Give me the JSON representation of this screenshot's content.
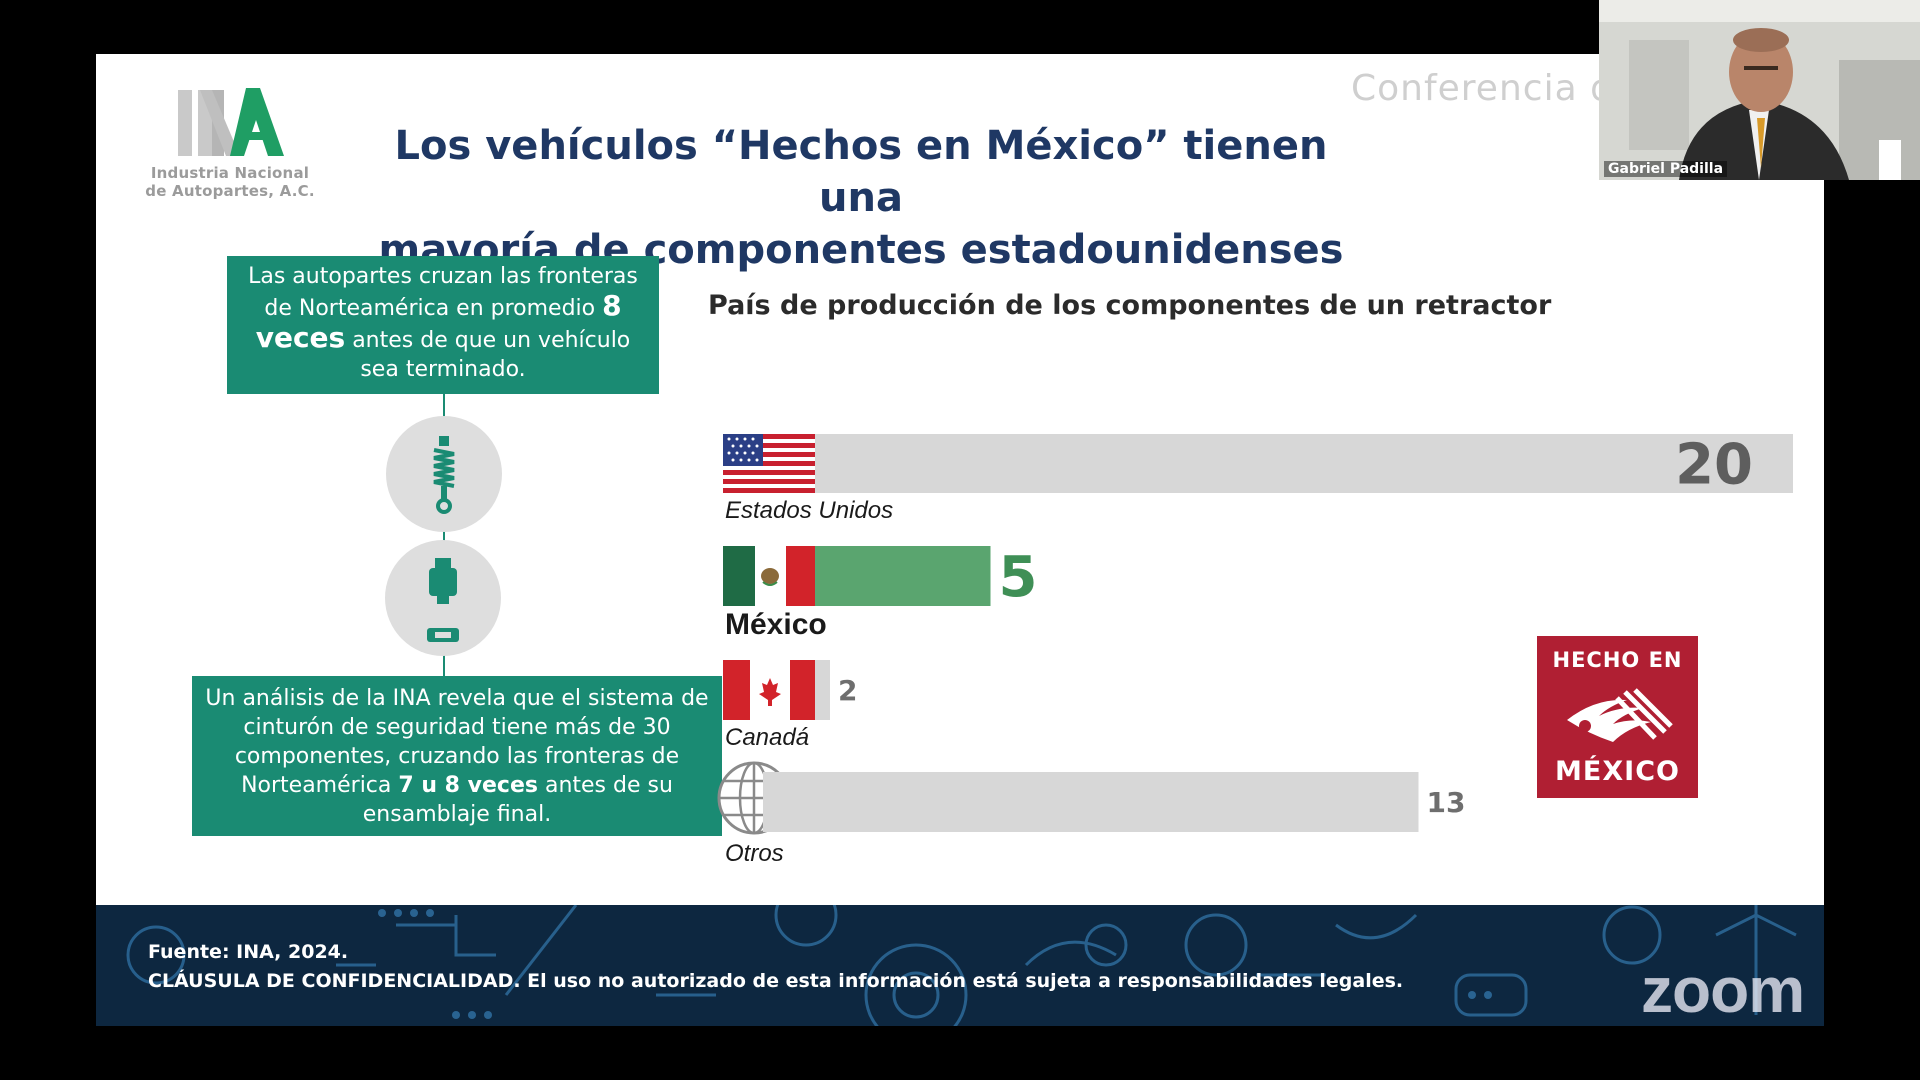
{
  "meeting": {
    "participant_name": "Gabriel Padilla",
    "watermark_text": "Conferencia d",
    "app_watermark": "zoom"
  },
  "slide": {
    "logo": {
      "letters": "INA",
      "line1": "Industria Nacional",
      "line2": "de Autopartes, A.C."
    },
    "title_line1": "Los vehículos “Hechos en México” tienen una",
    "title_line2": "mayoría de componentes estadounidenses",
    "box1": {
      "part1": "Las autopartes cruzan las fronteras de Norteamérica en promedio ",
      "highlight": "8 veces",
      "part2": " antes de que un vehículo sea terminado."
    },
    "box2": {
      "part1": "Un análisis de la INA revela que el sistema de cinturón de seguridad tiene más de 30 componentes, cruzando las fronteras de Norteamérica ",
      "highlight": "7 u 8 veces",
      "part2": " antes de su ensamblaje final."
    },
    "icons": [
      "spring-shock-icon",
      "seatbelt-buckle-icon"
    ],
    "badge": {
      "top": "HECHO EN",
      "bottom": "MÉXICO"
    },
    "footer": {
      "source": "Fuente: INA, 2024.",
      "clause": "CLÁUSULA DE  CONFIDENCIALIDAD. El uso no autorizado de esta información está sujeta a responsabilidades legales."
    }
  },
  "chart_data": {
    "type": "bar",
    "orientation": "horizontal",
    "title": "País de producción de los componentes de un retractor",
    "categories": [
      "Estados Unidos",
      "México",
      "Canadá",
      "Otros"
    ],
    "values": [
      20,
      5,
      2,
      13
    ],
    "value_labels": [
      "20",
      "5",
      "2",
      "13"
    ],
    "flags": [
      "us-flag-icon",
      "mexico-flag-icon",
      "canada-flag-icon",
      "globe-icon"
    ],
    "colors": {
      "default_bar": "#d7d7d7",
      "highlight_bar": "#5aa56f",
      "highlight_label": "#3f8f56",
      "default_label": "#6e6e6e",
      "us_label": "#5e5e5e"
    },
    "highlight_index": 1,
    "xlim": [
      0,
      20
    ],
    "axes_visible": false,
    "grid": false,
    "legend": "none"
  }
}
